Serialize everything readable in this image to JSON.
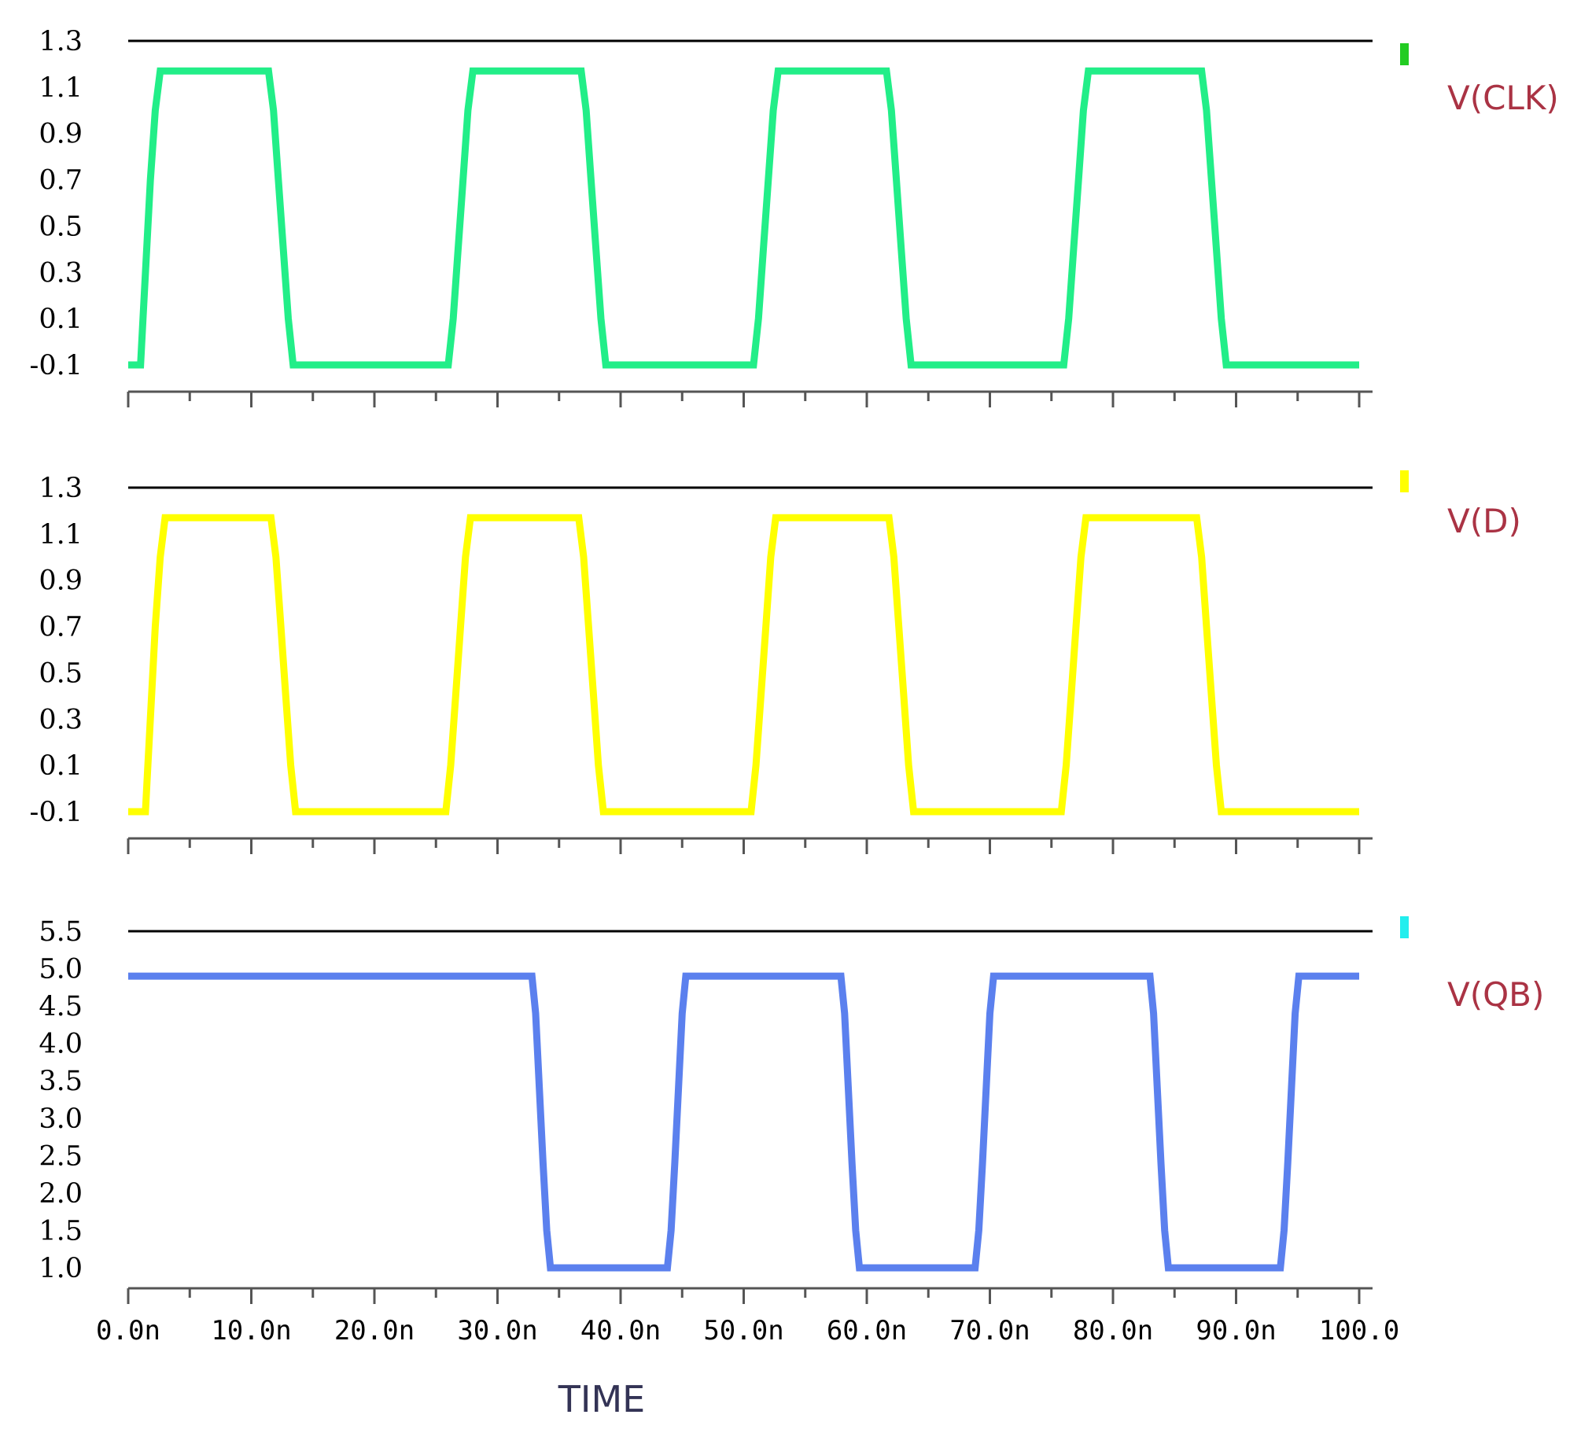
{
  "chart_data": [
    {
      "type": "line",
      "series": [
        {
          "name": "V(CLK)",
          "color": "#22ee88",
          "marker_color": "#22cc22",
          "x": [
            0,
            1.0,
            1.2,
            1.5,
            1.8,
            2.2,
            2.6,
            11.4,
            11.8,
            12.2,
            12.6,
            13.0,
            13.4,
            26.0,
            26.4,
            26.8,
            27.2,
            27.6,
            28.0,
            36.8,
            37.2,
            37.6,
            38.0,
            38.4,
            38.8,
            50.8,
            51.2,
            51.6,
            52.0,
            52.4,
            52.8,
            61.6,
            62.0,
            62.4,
            62.8,
            63.2,
            63.6,
            76.0,
            76.4,
            76.8,
            77.2,
            77.6,
            78.0,
            87.2,
            87.6,
            88.0,
            88.4,
            88.8,
            89.2,
            100
          ],
          "y": [
            -0.1,
            -0.1,
            0.1,
            0.4,
            0.7,
            1.0,
            1.17,
            1.17,
            1.0,
            0.7,
            0.4,
            0.1,
            -0.1,
            -0.1,
            0.1,
            0.4,
            0.7,
            1.0,
            1.17,
            1.17,
            1.0,
            0.7,
            0.4,
            0.1,
            -0.1,
            -0.1,
            0.1,
            0.4,
            0.7,
            1.0,
            1.17,
            1.17,
            1.0,
            0.7,
            0.4,
            0.1,
            -0.1,
            -0.1,
            0.1,
            0.4,
            0.7,
            1.0,
            1.17,
            1.17,
            1.0,
            0.7,
            0.4,
            0.1,
            -0.1,
            -0.1
          ]
        }
      ],
      "yticks": [
        "1.3",
        "1.1",
        "0.9",
        "0.7",
        "0.5",
        "0.3",
        "0.1",
        "-0.1"
      ],
      "ylim": [
        -0.1,
        1.3
      ],
      "xlim": [
        0,
        100
      ]
    },
    {
      "type": "line",
      "series": [
        {
          "name": "V(D)",
          "color": "#ffff00",
          "marker_color": "#ffff00",
          "x": [
            0,
            1.4,
            1.6,
            1.9,
            2.2,
            2.6,
            3.0,
            11.6,
            12.0,
            12.4,
            12.8,
            13.2,
            13.6,
            25.8,
            26.2,
            26.6,
            27.0,
            27.4,
            27.8,
            36.6,
            37.0,
            37.4,
            37.8,
            38.2,
            38.6,
            50.6,
            51.0,
            51.4,
            51.8,
            52.2,
            52.6,
            61.8,
            62.2,
            62.6,
            63.0,
            63.4,
            63.8,
            75.8,
            76.2,
            76.6,
            77.0,
            77.4,
            77.8,
            86.8,
            87.2,
            87.6,
            88.0,
            88.4,
            88.8,
            100
          ],
          "y": [
            -0.1,
            -0.1,
            0.1,
            0.4,
            0.7,
            1.0,
            1.17,
            1.17,
            1.0,
            0.7,
            0.4,
            0.1,
            -0.1,
            -0.1,
            0.1,
            0.4,
            0.7,
            1.0,
            1.17,
            1.17,
            1.0,
            0.7,
            0.4,
            0.1,
            -0.1,
            -0.1,
            0.1,
            0.4,
            0.7,
            1.0,
            1.17,
            1.17,
            1.0,
            0.7,
            0.4,
            0.1,
            -0.1,
            -0.1,
            0.1,
            0.4,
            0.7,
            1.0,
            1.17,
            1.17,
            1.0,
            0.7,
            0.4,
            0.1,
            -0.1,
            -0.1
          ]
        }
      ],
      "yticks": [
        "1.3",
        "1.1",
        "0.9",
        "0.7",
        "0.5",
        "0.3",
        "0.1",
        "-0.1"
      ],
      "ylim": [
        -0.1,
        1.3
      ],
      "xlim": [
        0,
        100
      ]
    },
    {
      "type": "line",
      "series": [
        {
          "name": "V(QB)",
          "color": "#5b80ee",
          "marker_color": "#22eeee",
          "x": [
            0,
            32.8,
            33.1,
            33.4,
            33.7,
            34.0,
            34.3,
            43.8,
            44.1,
            44.4,
            44.7,
            45.0,
            45.3,
            57.9,
            58.2,
            58.5,
            58.8,
            59.1,
            59.4,
            68.8,
            69.1,
            69.4,
            69.7,
            70.0,
            70.3,
            83.0,
            83.3,
            83.6,
            83.9,
            84.2,
            84.5,
            93.6,
            93.9,
            94.2,
            94.5,
            94.8,
            95.1,
            100
          ],
          "y": [
            4.9,
            4.9,
            4.4,
            3.4,
            2.4,
            1.5,
            1.0,
            1.0,
            1.5,
            2.4,
            3.4,
            4.4,
            4.9,
            4.9,
            4.4,
            3.4,
            2.4,
            1.5,
            1.0,
            1.0,
            1.5,
            2.4,
            3.4,
            4.4,
            4.9,
            4.9,
            4.4,
            3.4,
            2.4,
            1.5,
            1.0,
            1.0,
            1.5,
            2.4,
            3.4,
            4.4,
            4.9,
            4.9
          ]
        }
      ],
      "yticks": [
        "5.5",
        "5.0",
        "4.5",
        "4.0",
        "3.5",
        "3.0",
        "2.5",
        "2.0",
        "1.5",
        "1.0"
      ],
      "ylim": [
        1.0,
        5.5
      ],
      "xlim": [
        0,
        100
      ],
      "xticks": [
        "0.0n",
        "10.0n",
        "20.0n",
        "30.0n",
        "40.0n",
        "50.0n",
        "60.0n",
        "70.0n",
        "80.0n",
        "90.0n",
        "100.0"
      ],
      "xlabel": "TIME"
    }
  ]
}
